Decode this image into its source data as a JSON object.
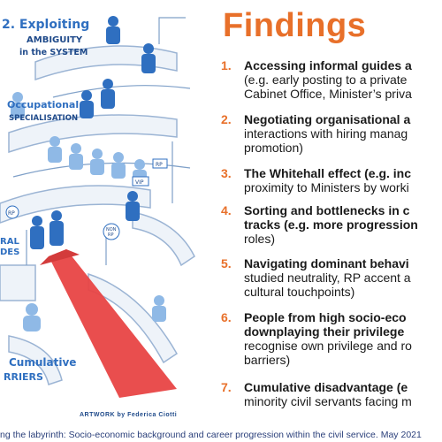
{
  "title": "Findings",
  "illustration": {
    "labels": {
      "ambiguity": [
        "2. Exploiting",
        "AMBIGUITY",
        "in the SYSTEM"
      ],
      "occupational": [
        "Occupational",
        "SPECIALISATION"
      ],
      "informal": [
        "RAL",
        "DES"
      ],
      "cumulative": [
        "Cumulative",
        "RRIERS"
      ],
      "vip": "VIP",
      "rp_sign": "RP",
      "rp_badge": "RP",
      "non_rp_badge": [
        "NON",
        "RP"
      ]
    },
    "artwork_credit": "ARTWORK by Federica Ciotti"
  },
  "findings": [
    {
      "num": "1.",
      "lines": [
        {
          "text": "Accessing informal guides a",
          "bold": true
        },
        {
          "text": "(e.g. early posting to a private",
          "bold": false
        },
        {
          "text": "Cabinet Office, Minister’s priva",
          "bold": false
        }
      ]
    },
    {
      "num": "2.",
      "lines": [
        {
          "text": "Negotiating organisational a",
          "bold": true
        },
        {
          "text": "interactions with hiring manag",
          "bold": false
        },
        {
          "text": "promotion)",
          "bold": false
        }
      ]
    },
    {
      "num": "3.",
      "lines": [
        {
          "text": "The Whitehall effect (e.g. inc",
          "bold": true
        },
        {
          "text": "proximity to Ministers by worki",
          "bold": false
        }
      ]
    },
    {
      "num": "4.",
      "lines": [
        {
          "text": "Sorting and bottlenecks in c",
          "bold": true
        },
        {
          "text": "tracks (e.g. more progression",
          "bold": true
        },
        {
          "text": "roles)",
          "bold": false
        }
      ]
    },
    {
      "num": "5.",
      "lines": [
        {
          "text": "Navigating dominant behavi",
          "bold": true
        },
        {
          "text": "studied neutrality, RP accent a",
          "bold": false
        },
        {
          "text": "cultural touchpoints)",
          "bold": false
        }
      ]
    },
    {
      "num": "6.",
      "lines": [
        {
          "text": "People from high socio-eco",
          "bold": true
        },
        {
          "text": "downplaying their privilege",
          "bold": true
        },
        {
          "text": "recognise own privilege and ro",
          "bold": false
        },
        {
          "text": "barriers)",
          "bold": false
        }
      ]
    },
    {
      "num": "7.",
      "lines": [
        {
          "text": "Cumulative disadvantage (e",
          "bold": true
        },
        {
          "text": "minority civil servants facing m",
          "bold": false
        }
      ]
    }
  ],
  "caption": "ng the labyrinth: Socio-economic background and career progression within the civil service. May 2021",
  "colors": {
    "accent": "#e8702a",
    "illustration_blue": "#2f6fc0",
    "light_blue": "#9cc3e8",
    "carpet_red": "#e84545",
    "caption_blue": "#2a3f7a"
  }
}
